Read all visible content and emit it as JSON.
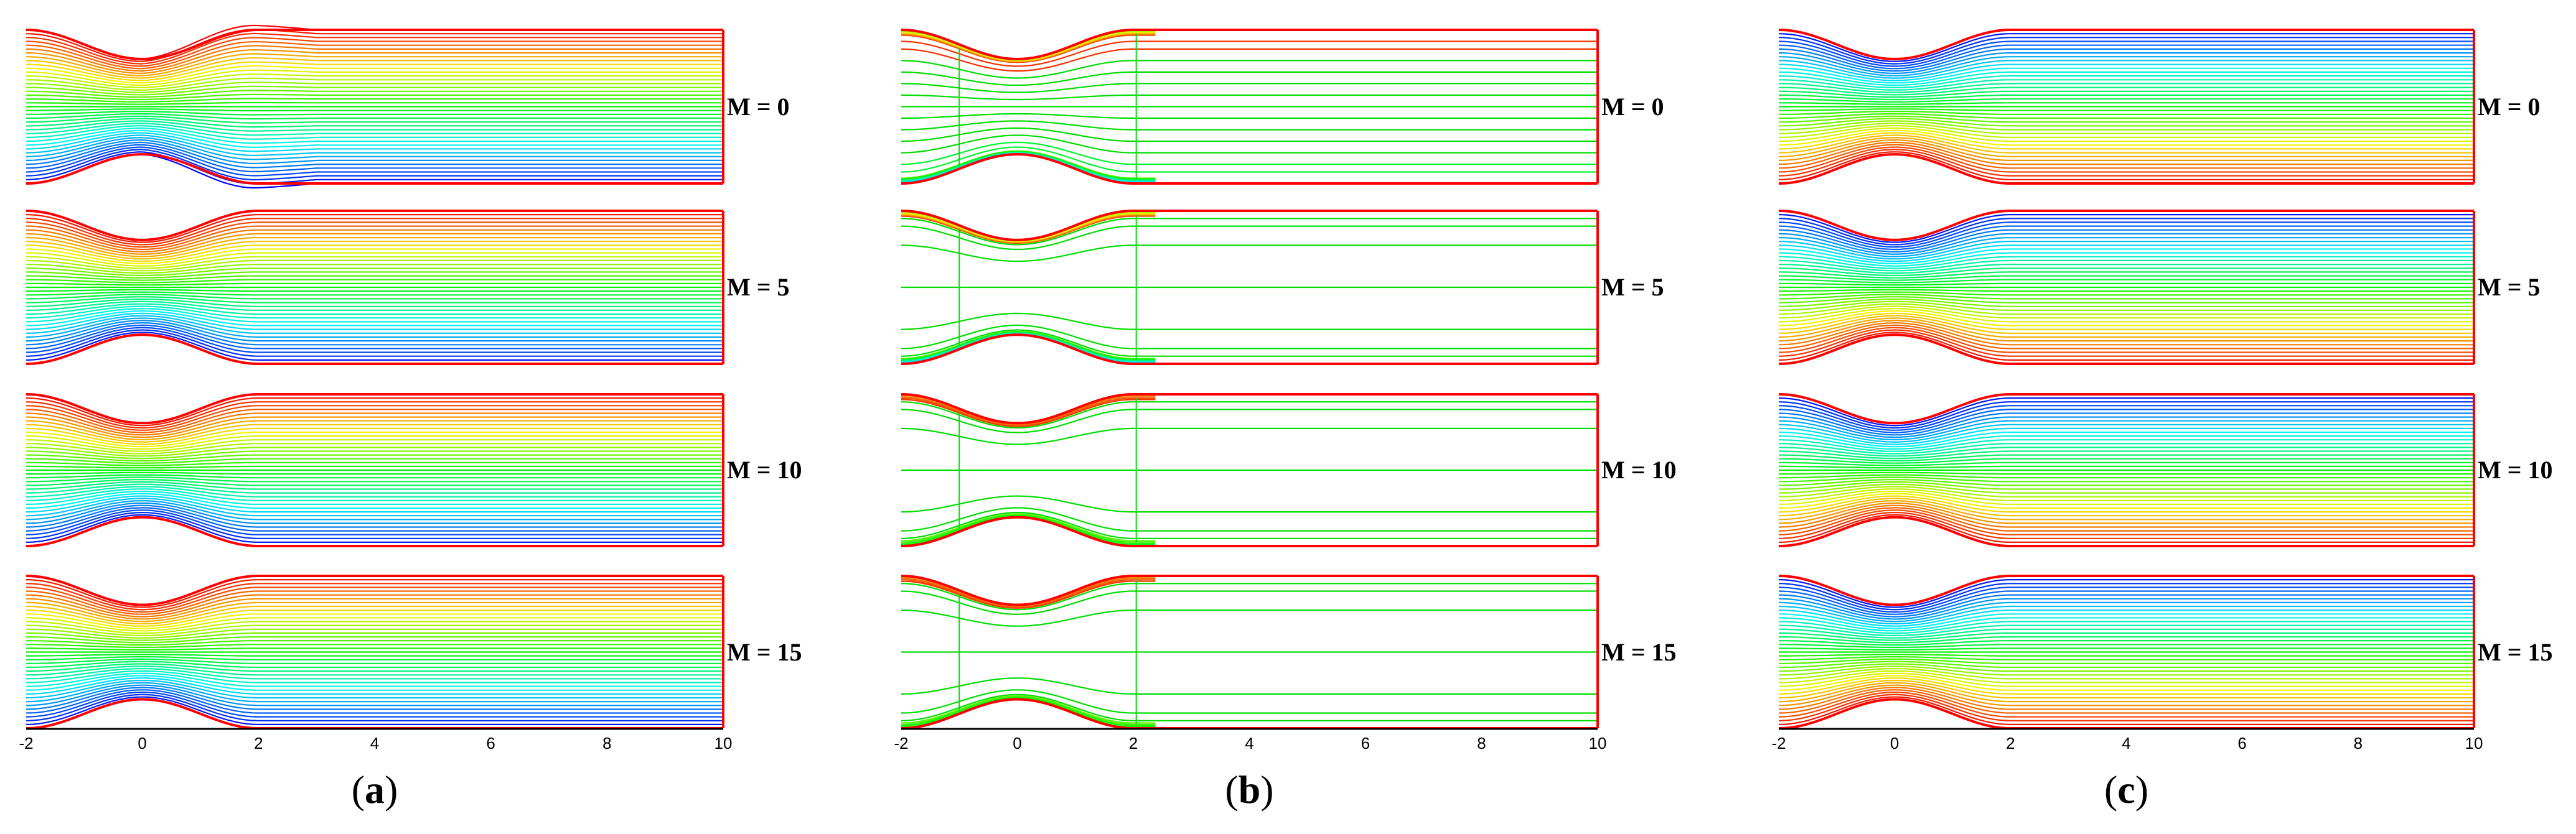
{
  "panels": [
    {
      "id": "a",
      "caption_open": "(",
      "caption_letter": "a",
      "caption_close": ")",
      "style": "rainbow-asym",
      "rows": [
        {
          "label": "M = 0"
        },
        {
          "label": "M = 5"
        },
        {
          "label": "M = 10"
        },
        {
          "label": "M = 15"
        }
      ]
    },
    {
      "id": "b",
      "caption_open": "(",
      "caption_letter": "b",
      "caption_close": ")",
      "style": "vorticity",
      "rows": [
        {
          "label": "M = 0"
        },
        {
          "label": "M = 5"
        },
        {
          "label": "M = 10"
        },
        {
          "label": "M = 15"
        }
      ]
    },
    {
      "id": "c",
      "caption_open": "(",
      "caption_letter": "c",
      "caption_close": ")",
      "style": "rainbow-sym",
      "rows": [
        {
          "label": "M = 0"
        },
        {
          "label": "M = 5"
        },
        {
          "label": "M = 10"
        },
        {
          "label": "M = 15"
        }
      ]
    }
  ],
  "x_ticks": [
    "-2",
    "0",
    "2",
    "4",
    "6",
    "8",
    "10"
  ],
  "colors": {
    "wall": "#ff0000",
    "vorticity_line": "#00dd00",
    "axis": "#000000"
  }
}
